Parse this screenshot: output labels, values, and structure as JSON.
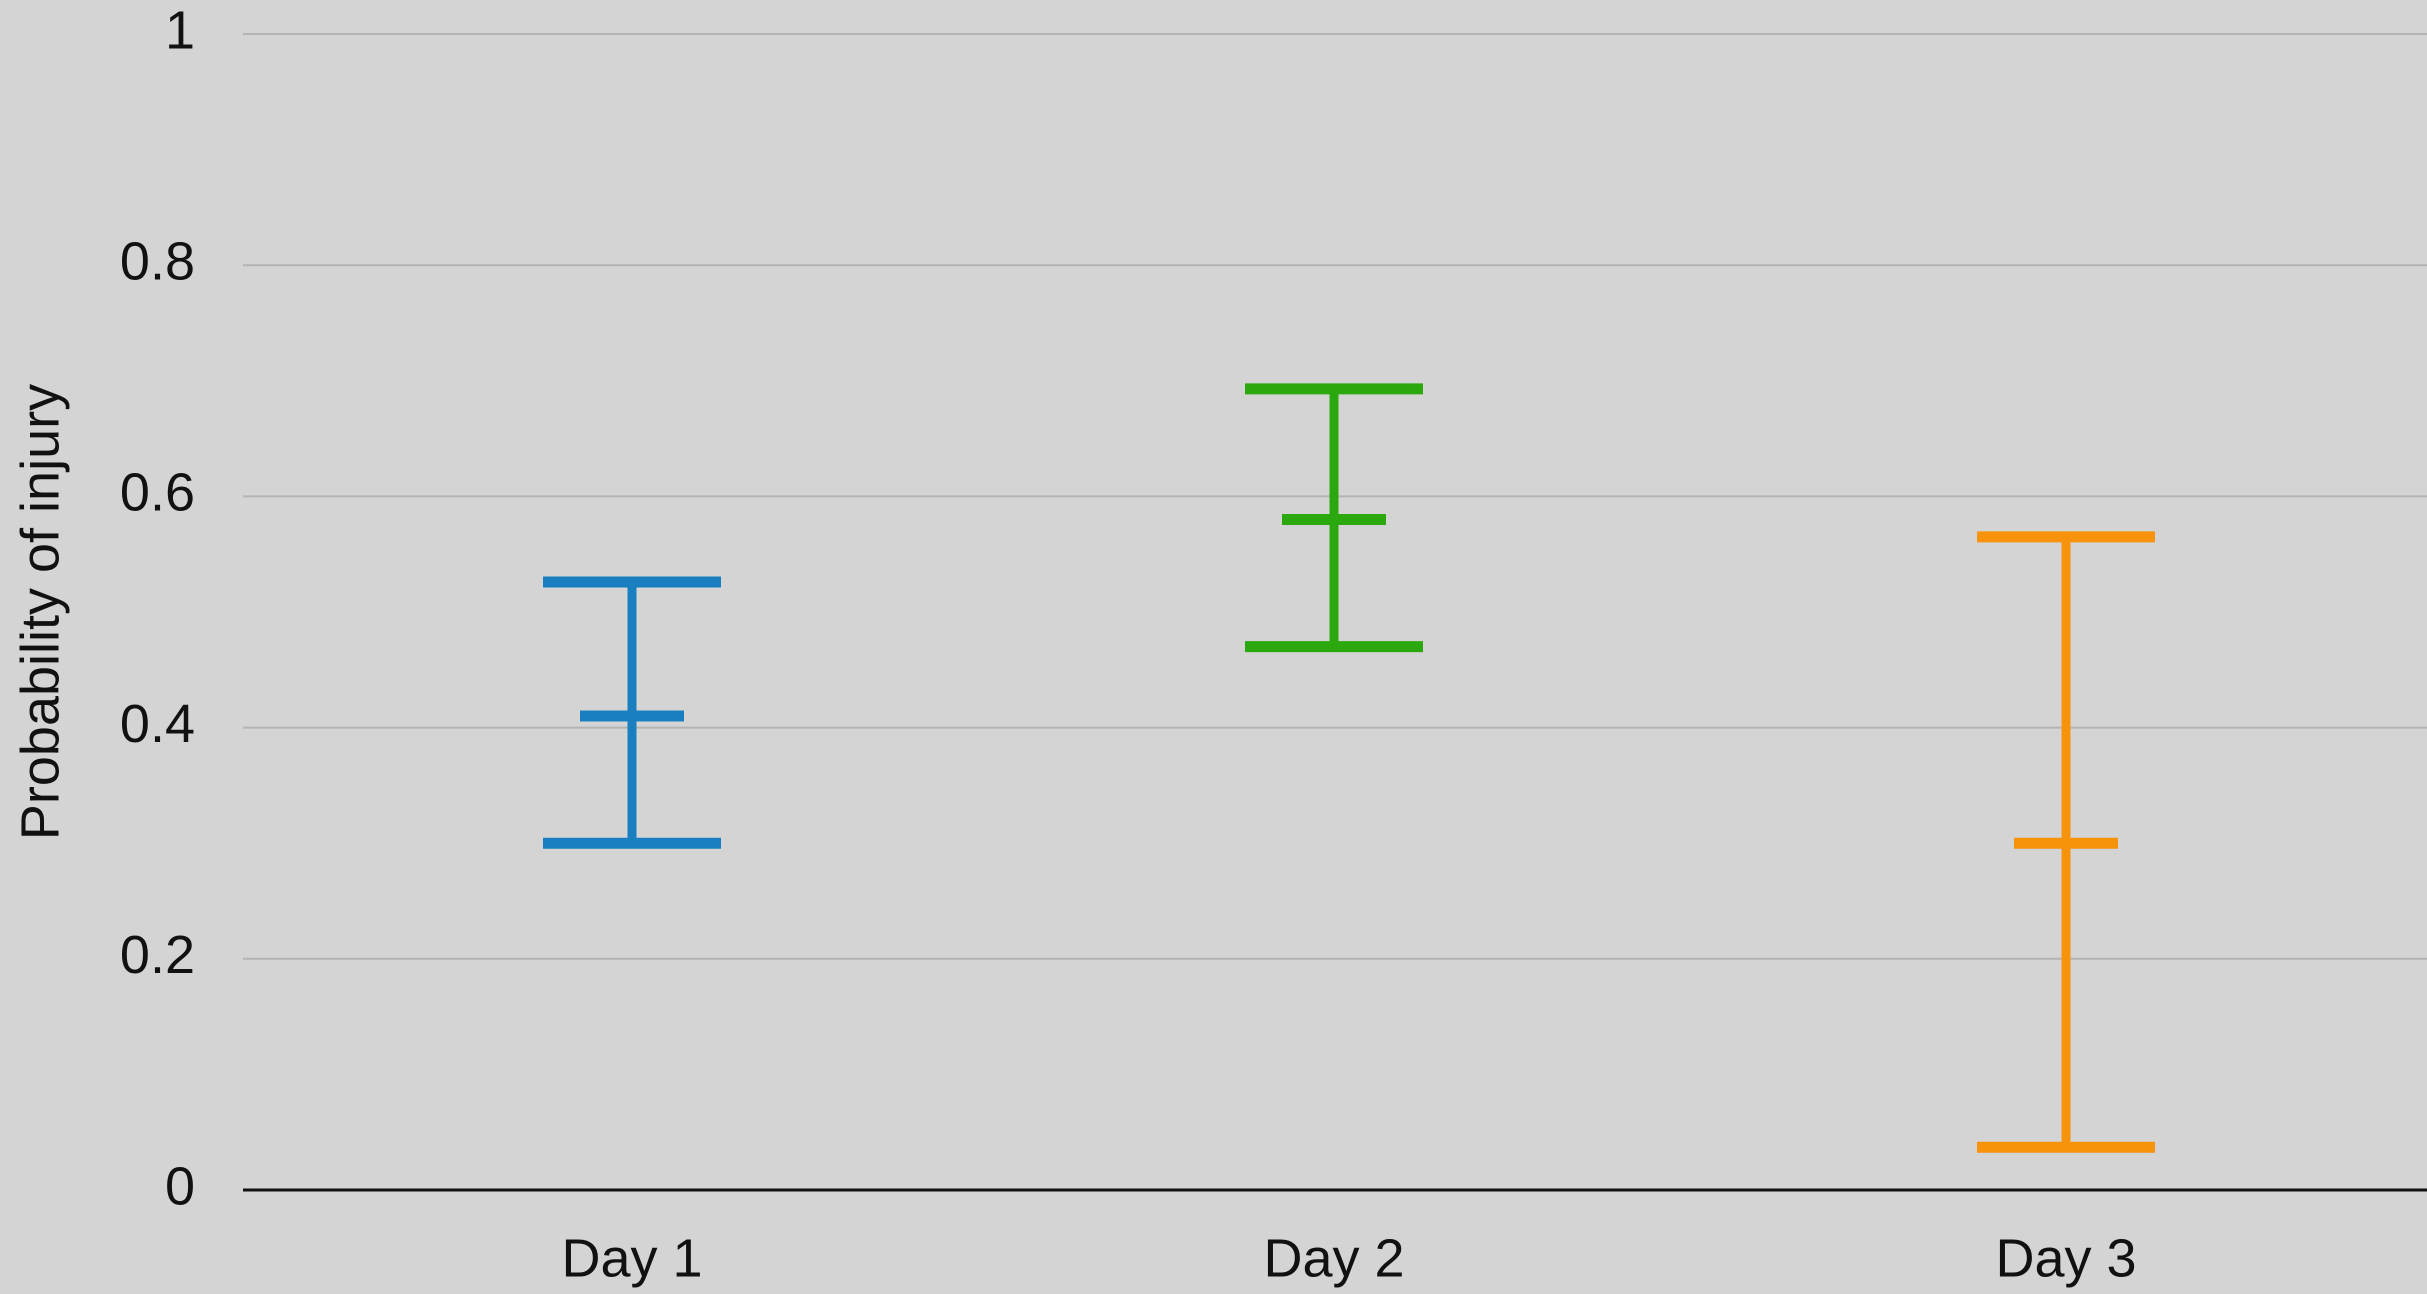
{
  "chart_data": {
    "type": "errorbar",
    "y_label": "Probability of injury",
    "categories": [
      "Day 1",
      "Day 2",
      "Day 3"
    ],
    "values": [
      0.41,
      0.58,
      0.3
    ],
    "lower": [
      0.3,
      0.47,
      0.037
    ],
    "upper": [
      0.526,
      0.693,
      0.565
    ],
    "colors": [
      "#1a7fc1",
      "#2aa80e",
      "#f7920b"
    ],
    "ylim": [
      0,
      1
    ],
    "yticks": [
      0,
      0.2,
      0.4,
      0.6,
      0.8,
      1
    ],
    "grid": true
  }
}
